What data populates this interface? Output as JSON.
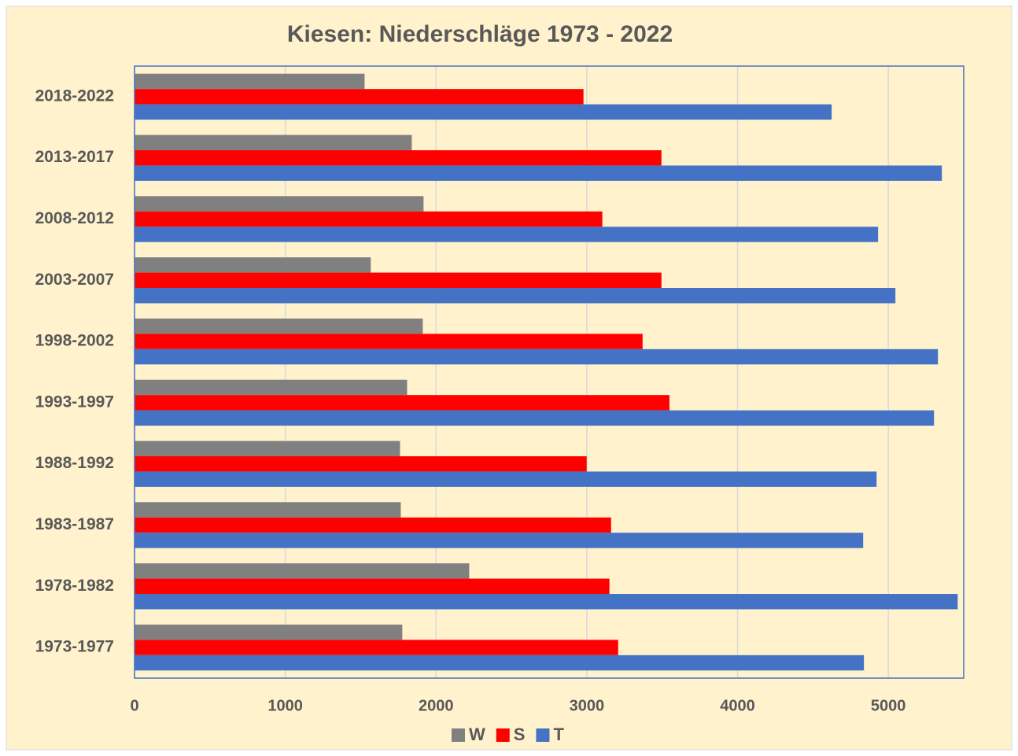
{
  "chart_data": {
    "type": "barh",
    "title": "Kiesen: Niederschläge 1973 - 2022",
    "categories": [
      "1973-1977",
      "1978-1982",
      "1983-1987",
      "1988-1992",
      "1993-1997",
      "1998-2002",
      "2003-2007",
      "2008-2012",
      "2013-2017",
      "2018-2022"
    ],
    "series": [
      {
        "name": "W",
        "color": "#808080",
        "values": [
          1776,
          2220,
          1766,
          1761,
          1808,
          1912,
          1567,
          1917,
          1839,
          1526
        ]
      },
      {
        "name": "S",
        "color": "#ff0000",
        "values": [
          3208,
          3150,
          3161,
          2999,
          3548,
          3370,
          3495,
          3103,
          3495,
          2978
        ]
      },
      {
        "name": "T",
        "color": "#4472c4",
        "values": [
          4838,
          5460,
          4833,
          4922,
          5303,
          5329,
          5047,
          4932,
          5355,
          4624
        ]
      }
    ],
    "xlim": [
      0,
      5500
    ],
    "xticks": [
      0,
      1000,
      2000,
      3000,
      4000,
      5000
    ],
    "grid": true,
    "legend": "bottom"
  }
}
